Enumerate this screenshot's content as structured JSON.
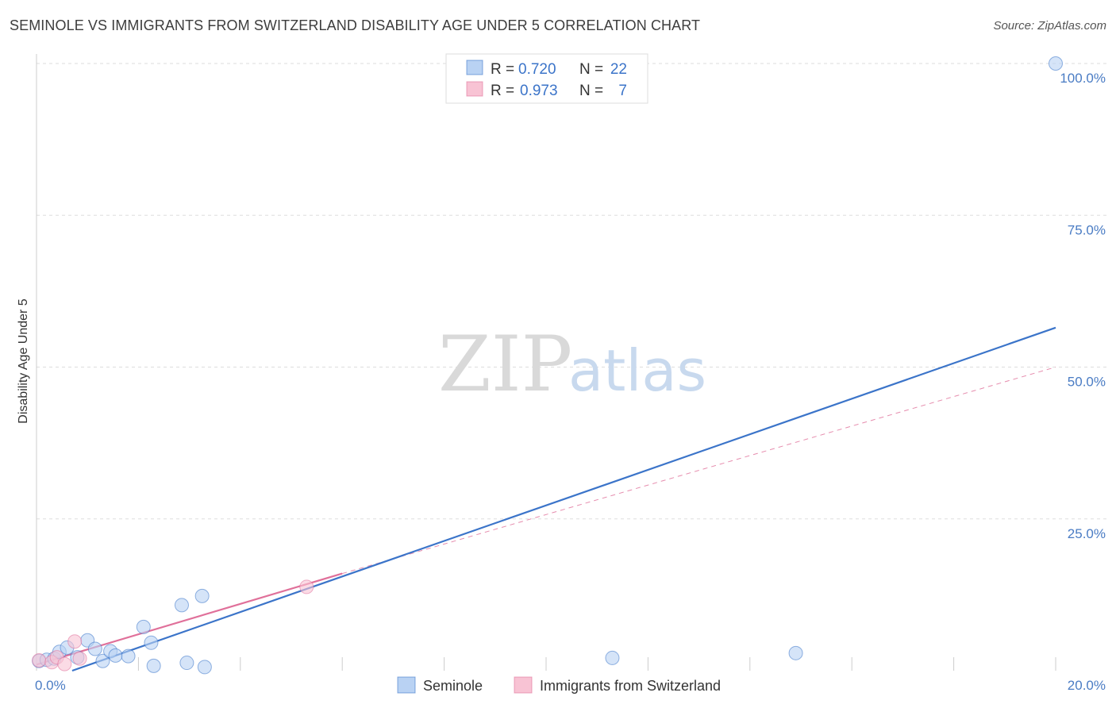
{
  "header": {
    "title": "SEMINOLE VS IMMIGRANTS FROM SWITZERLAND DISABILITY AGE UNDER 5 CORRELATION CHART",
    "source": "Source: ZipAtlas.com"
  },
  "watermark": {
    "zip": "ZIP",
    "atlas": "atlas"
  },
  "colors": {
    "seminole": "#3b74c9",
    "seminole_fill": "#b9d2f3",
    "switzerland": "#e0709a",
    "switzerland_fill": "#f8c3d4",
    "grid": "#dddddd",
    "tick_text": "#4a7cc4"
  },
  "legend": {
    "rows": [
      {
        "r_label": "R =",
        "r_value": "0.720",
        "n_label": "N =",
        "n_value": "22"
      },
      {
        "r_label": "R =",
        "r_value": "0.973",
        "n_label": "N =",
        "n_value": "7"
      }
    ]
  },
  "chart_data": {
    "type": "scatter",
    "title": "SEMINOLE VS IMMIGRANTS FROM SWITZERLAND DISABILITY AGE UNDER 5 CORRELATION CHART",
    "xlabel": "",
    "ylabel": "Disability Age Under 5",
    "xlim": [
      0,
      20
    ],
    "ylim": [
      0,
      100
    ],
    "x_tick_labels": [
      "0.0%",
      "20.0%"
    ],
    "y_ticks": [
      25,
      50,
      75,
      100
    ],
    "y_tick_labels": [
      "25.0%",
      "50.0%",
      "75.0%",
      "100.0%"
    ],
    "series": [
      {
        "name": "Seminole",
        "r": 0.72,
        "n": 22,
        "points": [
          [
            0.05,
            1.6
          ],
          [
            0.2,
            1.8
          ],
          [
            0.35,
            2.0
          ],
          [
            0.45,
            3.1
          ],
          [
            0.6,
            3.8
          ],
          [
            0.8,
            2.2
          ],
          [
            1.0,
            5.0
          ],
          [
            1.15,
            3.6
          ],
          [
            1.3,
            1.6
          ],
          [
            1.45,
            3.2
          ],
          [
            1.55,
            2.5
          ],
          [
            1.8,
            2.4
          ],
          [
            2.1,
            7.2
          ],
          [
            2.25,
            4.6
          ],
          [
            2.3,
            0.8
          ],
          [
            2.85,
            10.8
          ],
          [
            2.95,
            1.3
          ],
          [
            3.25,
            12.3
          ],
          [
            3.3,
            0.6
          ],
          [
            11.3,
            2.1
          ],
          [
            14.9,
            2.9
          ],
          [
            20.0,
            100.0
          ]
        ],
        "trend": {
          "x": [
            0.7,
            20.0
          ],
          "y": [
            0.0,
            56.5
          ]
        }
      },
      {
        "name": "Immigrants from Switzerland",
        "r": 0.973,
        "n": 7,
        "points": [
          [
            0.05,
            1.7
          ],
          [
            0.3,
            1.4
          ],
          [
            0.4,
            2.2
          ],
          [
            0.55,
            1.1
          ],
          [
            0.75,
            4.8
          ],
          [
            0.85,
            2.0
          ],
          [
            5.3,
            13.8
          ]
        ],
        "trend": {
          "x": [
            0.0,
            6.0
          ],
          "y": [
            1.0,
            16.0
          ]
        },
        "trend_extended": {
          "x": [
            6.0,
            20.0
          ],
          "y": [
            16.0,
            50.0
          ]
        }
      }
    ]
  },
  "bottom_legend": {
    "items": [
      {
        "label": "Seminole"
      },
      {
        "label": "Immigrants from Switzerland"
      }
    ]
  }
}
